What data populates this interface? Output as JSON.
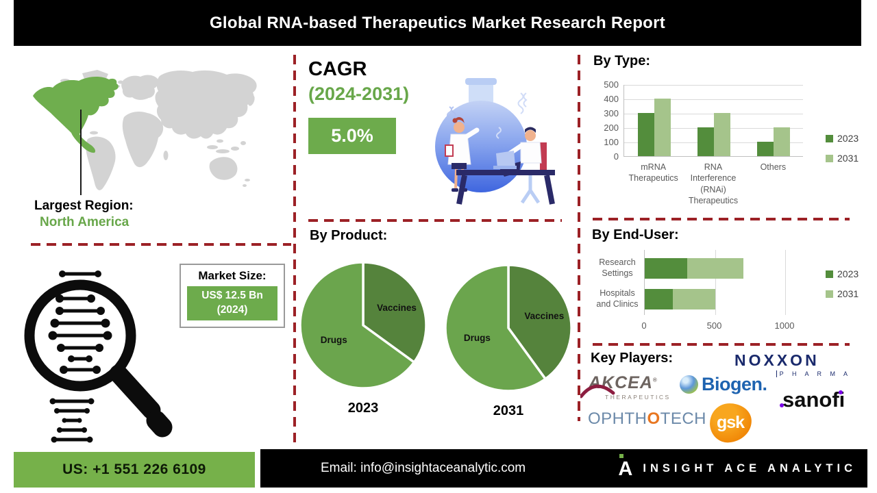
{
  "header": {
    "title": "Global RNA-based Therapeutics Market Research Report"
  },
  "region": {
    "label": "Largest Region:",
    "value": "North America"
  },
  "cagr": {
    "label": "CAGR",
    "period": "(2024-2031)",
    "value": "5.0%"
  },
  "market_size": {
    "label": "Market Size:",
    "value_line1": "US$ 12.5 Bn",
    "value_line2": "(2024)"
  },
  "chart_data": [
    {
      "name": "by_type",
      "type": "bar",
      "title": "By Type:",
      "categories": [
        "mRNA Therapeutics",
        "RNA Interference (RNAi) Therapeutics",
        "Others"
      ],
      "series": [
        {
          "name": "2023",
          "values": [
            300,
            200,
            100
          ]
        },
        {
          "name": "2031",
          "values": [
            400,
            300,
            200
          ]
        }
      ],
      "ylim": [
        0,
        500
      ],
      "yticks": [
        0,
        100,
        200,
        300,
        400,
        500
      ],
      "grid": true,
      "legend_position": "right"
    },
    {
      "name": "by_product",
      "type": "pie",
      "title": "By Product:",
      "pies": [
        {
          "year": "2023",
          "slices": [
            {
              "label": "Vaccines",
              "value": 35
            },
            {
              "label": "Drugs",
              "value": 65
            }
          ]
        },
        {
          "year": "2031",
          "slices": [
            {
              "label": "Vaccines",
              "value": 40
            },
            {
              "label": "Drugs",
              "value": 60
            }
          ]
        }
      ],
      "unit": "percent"
    },
    {
      "name": "by_end_user",
      "type": "bar-horizontal-stacked",
      "title": "By End-User:",
      "categories": [
        "Research Settings",
        "Hospitals and Clinics"
      ],
      "series": [
        {
          "name": "2023",
          "values": [
            300,
            200
          ]
        },
        {
          "name": "2031",
          "values": [
            400,
            300
          ]
        }
      ],
      "xlim": [
        0,
        1000
      ],
      "xticks": [
        0,
        500,
        1000
      ],
      "grid": true,
      "legend_position": "right"
    }
  ],
  "key_players": {
    "label": "Key Players:",
    "companies": [
      "NOXXON PHARMA",
      "AKCEA THERAPEUTICS",
      "Biogen",
      "sanofi",
      "OPHTHOTECH",
      "gsk"
    ],
    "logos": {
      "noxxon": {
        "main": "NOXXON",
        "sub": "P H A R M A"
      },
      "akcea": {
        "main": "AKCEA",
        "reg": "®",
        "sub": "THERAPEUTICS"
      },
      "biogen": {
        "text": "Biogen."
      },
      "sanofi": {
        "text": "sanofi"
      },
      "ophthotech": {
        "pre": "OPHTH",
        "o": "O",
        "post": "TECH"
      },
      "gsk": {
        "text": "gsk"
      }
    }
  },
  "footer": {
    "phone": "US: +1 551 226 6109",
    "email": "Email: info@insightaceanalytic.com",
    "brand": "INSIGHT ACE ANALYTIC",
    "brand_initial": "A"
  },
  "colors": {
    "accent_green": "#6dab4c",
    "green_text": "#68a74a",
    "series_2023": "#538d3c",
    "series_2031": "#a5c48b",
    "pie_drugs": "#6ba54d",
    "pie_vaccines": "#55833c",
    "dashed_red": "#9c2126",
    "map_gray": "#d3d3d3",
    "header_bg": "#000000"
  }
}
